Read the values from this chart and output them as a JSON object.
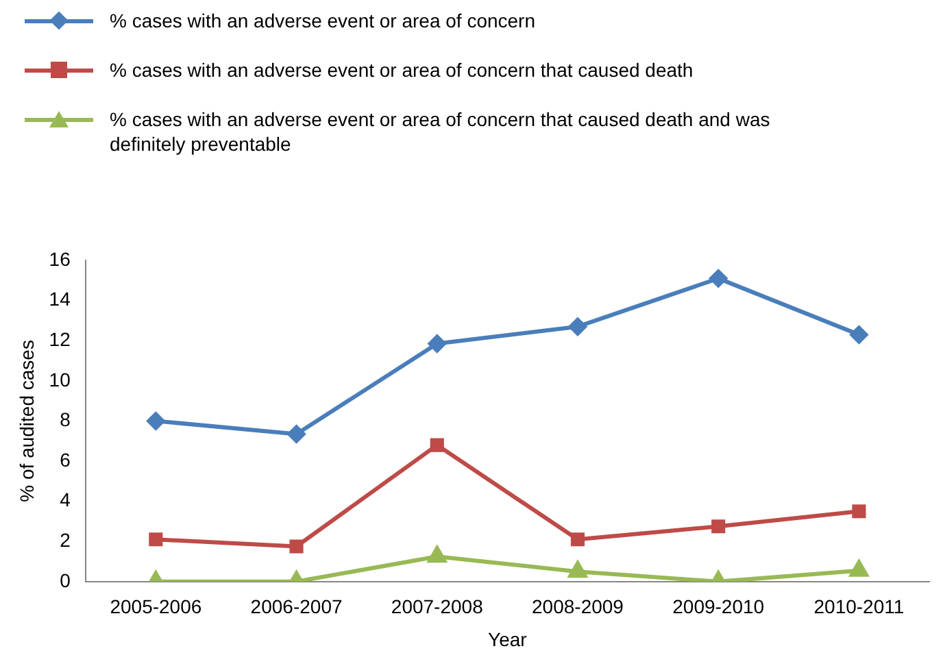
{
  "chart_data": {
    "type": "line",
    "xlabel": "Year",
    "ylabel": "% of audited cases",
    "categories": [
      "2005-2006",
      "2006-2007",
      "2007-2008",
      "2008-2009",
      "2009-2010",
      "2010-2011"
    ],
    "series": [
      {
        "name": "% cases with an adverse event or area of concern",
        "color": "#4a7ebb",
        "marker": "diamond",
        "values": [
          8.0,
          7.35,
          11.85,
          12.7,
          15.1,
          12.3
        ]
      },
      {
        "name": "% cases with an adverse event or area of concern that caused death",
        "color": "#be4b48",
        "marker": "square",
        "values": [
          2.1,
          1.75,
          6.8,
          2.1,
          2.75,
          3.5
        ]
      },
      {
        "name": "% cases with an adverse event or area of concern that caused death and was definitely preventable",
        "color": "#98b954",
        "marker": "triangle",
        "values": [
          0,
          0,
          1.25,
          0.5,
          0,
          0.55
        ]
      }
    ],
    "ylim": [
      0,
      16
    ],
    "yticks": [
      0,
      2,
      4,
      6,
      8,
      10,
      12,
      14,
      16
    ],
    "grid": false,
    "legend": "top"
  }
}
